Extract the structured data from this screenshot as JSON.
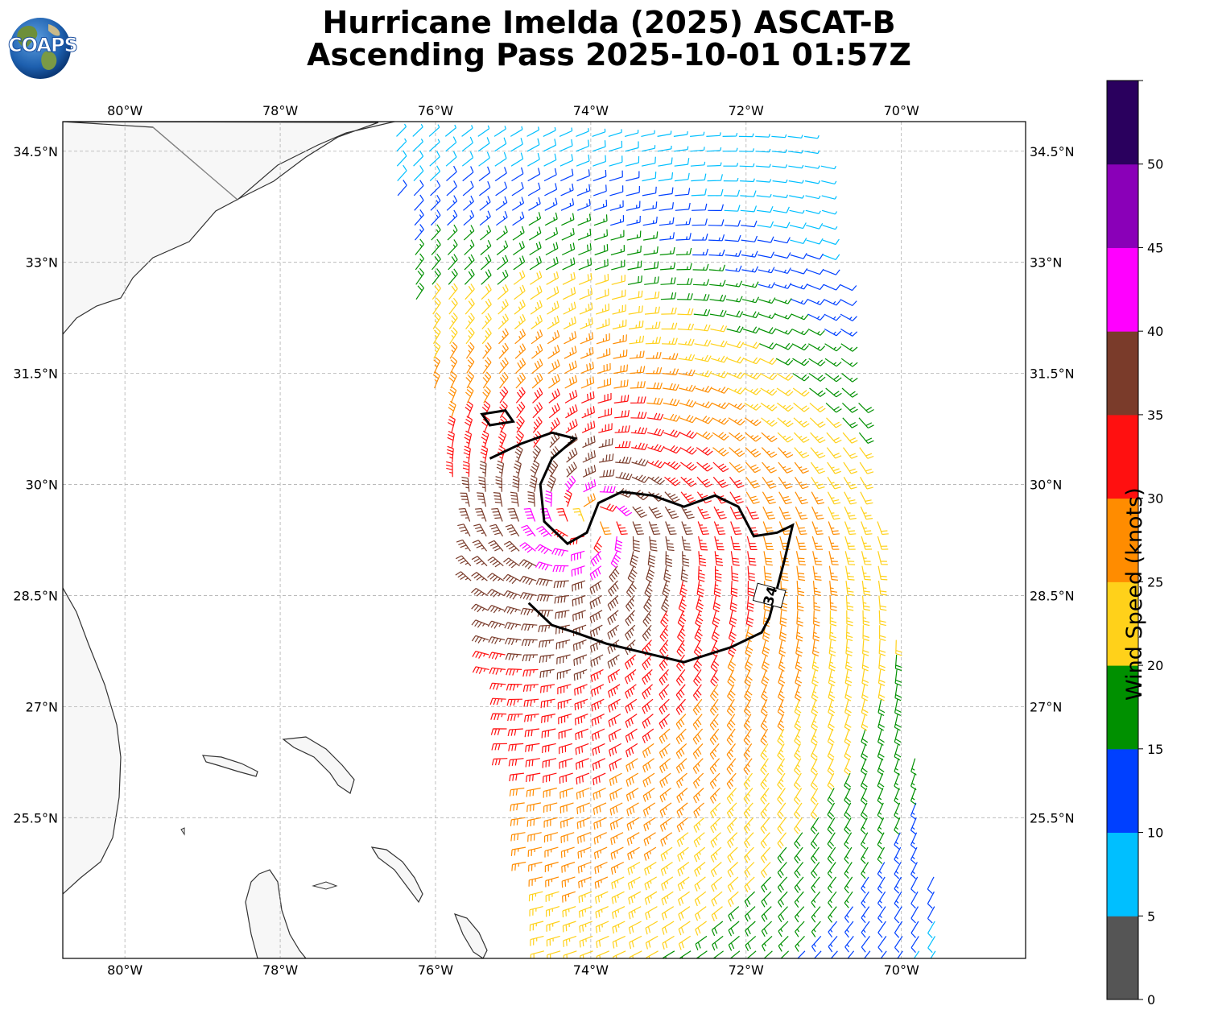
{
  "title": {
    "line1": "Hurricane Imelda (2025) ASCAT-B",
    "line2": "Ascending Pass 2025-10-01 01:57Z"
  },
  "logo": {
    "text": "COAPS"
  },
  "map": {
    "extent": {
      "lon_min": -80.8,
      "lon_max": -68.4,
      "lat_min": 23.6,
      "lat_max": 34.9
    },
    "lon_ticks": [
      {
        "value": -80,
        "label": "80°W"
      },
      {
        "value": -78,
        "label": "78°W"
      },
      {
        "value": -76,
        "label": "76°W"
      },
      {
        "value": -74,
        "label": "74°W"
      },
      {
        "value": -72,
        "label": "72°W"
      },
      {
        "value": -70,
        "label": "70°W"
      }
    ],
    "lat_ticks": [
      {
        "value": 34.5,
        "label": "34.5°N"
      },
      {
        "value": 33,
        "label": "33°N"
      },
      {
        "value": 31.5,
        "label": "31.5°N"
      },
      {
        "value": 30,
        "label": "30°N"
      },
      {
        "value": 28.5,
        "label": "28.5°N"
      },
      {
        "value": 27,
        "label": "27°N"
      },
      {
        "value": 25.5,
        "label": "25.5°N"
      }
    ],
    "gridlines": true,
    "land_color": "#f7f7f7",
    "coastline_color": "#333333",
    "swath": {
      "corners": [
        [
          -76.7,
          34.9
        ],
        [
          -71.1,
          34.9
        ],
        [
          -69.4,
          23.6
        ],
        [
          -74.6,
          23.6
        ]
      ]
    },
    "storm_center": {
      "lon": -74.05,
      "lat": 29.5
    },
    "contour": {
      "label": "34",
      "units": "kt",
      "line_color": "#000000",
      "label_position": {
        "lon": -71.7,
        "lat": 28.5
      }
    }
  },
  "colorbar": {
    "label": "Wind Speed (knots)",
    "bins": [
      {
        "min": 0,
        "max": 5,
        "color": "#555555"
      },
      {
        "min": 5,
        "max": 10,
        "color": "#00bfff"
      },
      {
        "min": 10,
        "max": 15,
        "color": "#0040ff"
      },
      {
        "min": 15,
        "max": 20,
        "color": "#009000"
      },
      {
        "min": 20,
        "max": 25,
        "color": "#ffd11a"
      },
      {
        "min": 25,
        "max": 30,
        "color": "#ff8c00"
      },
      {
        "min": 30,
        "max": 35,
        "color": "#ff1010"
      },
      {
        "min": 35,
        "max": 40,
        "color": "#7a3b2a"
      },
      {
        "min": 40,
        "max": 45,
        "color": "#ff00ff"
      },
      {
        "min": 45,
        "max": 50,
        "color": "#8a00b8"
      },
      {
        "min": 50,
        "max": 55,
        "color": "#2a005e"
      }
    ],
    "tick_labels": [
      "0",
      "5",
      "10",
      "15",
      "20",
      "25",
      "30",
      "35",
      "40",
      "45",
      "50"
    ]
  }
}
